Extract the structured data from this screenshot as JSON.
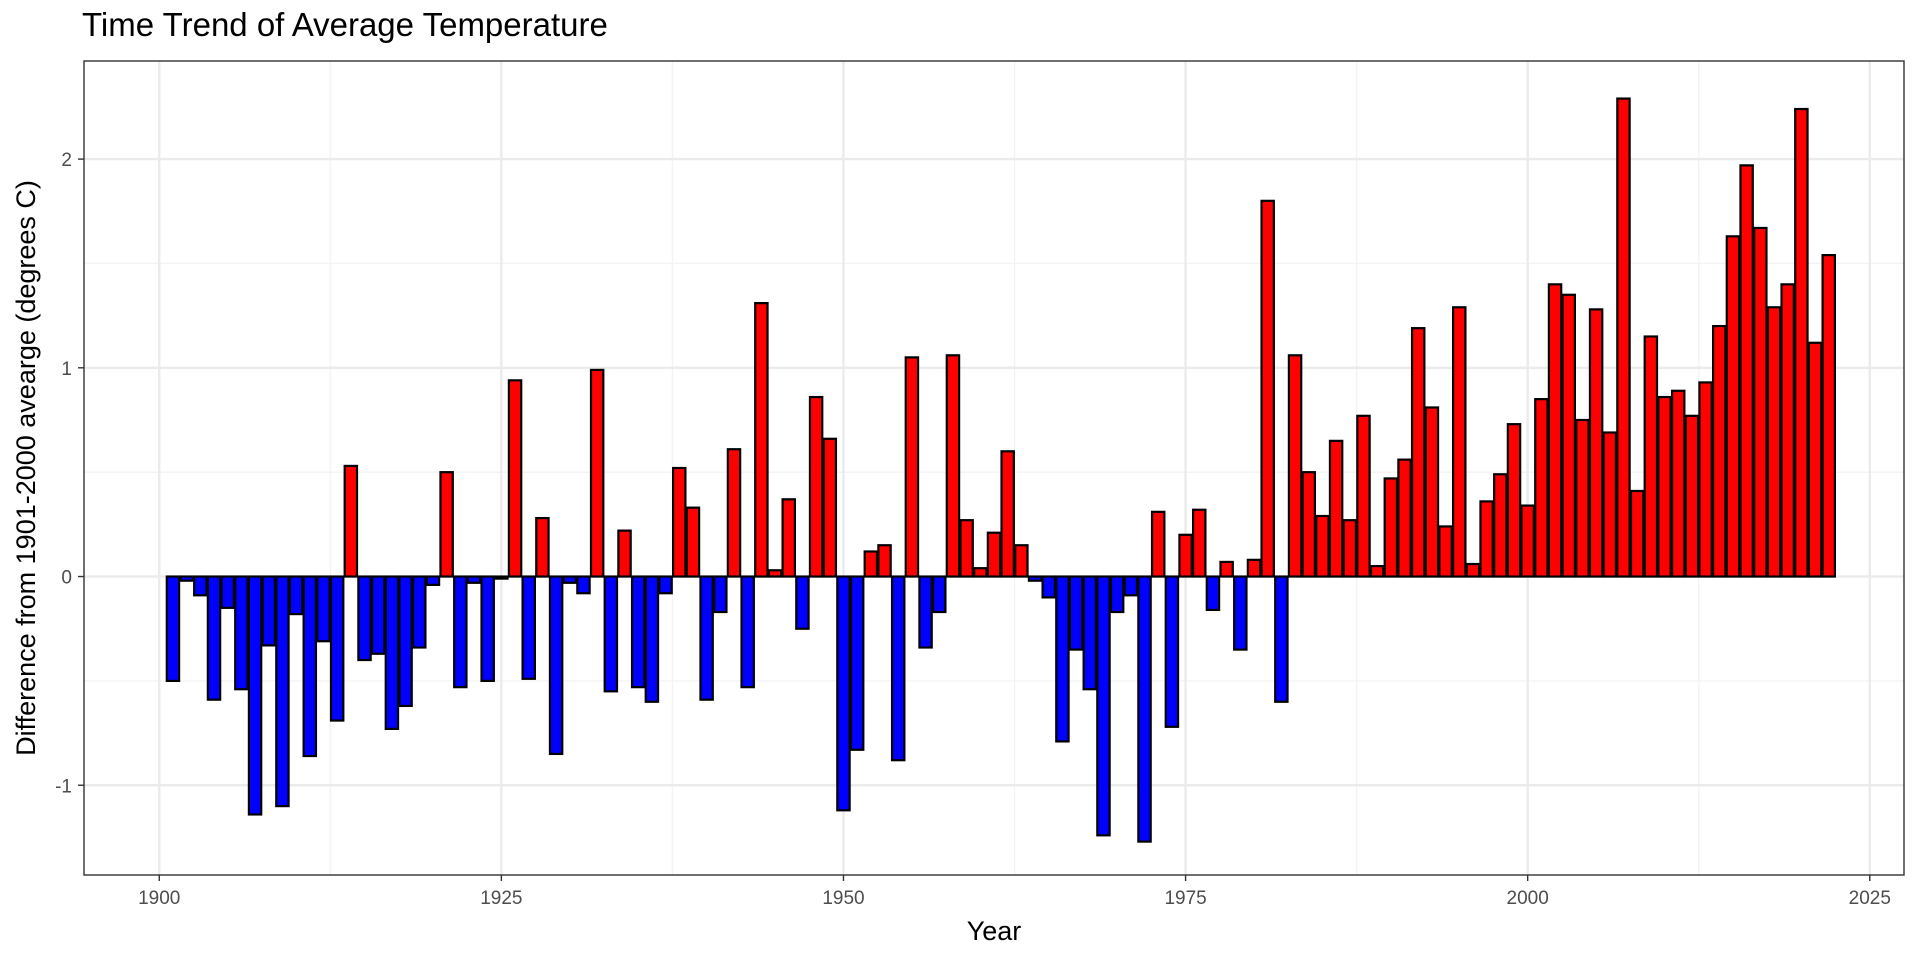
{
  "chart_data": {
    "type": "bar",
    "title": "Time Trend of Average Temperature",
    "xlabel": "Year",
    "ylabel": "Difference from 1901-2000 avearge (degrees C)",
    "xlim": [
      1894.5,
      2027.5
    ],
    "ylim": [
      -1.43,
      2.47
    ],
    "x_ticks": [
      1900,
      1925,
      1950,
      1975,
      2000,
      2025
    ],
    "y_ticks": [
      -1,
      0,
      1,
      2
    ],
    "y_tick_labels": [
      "-1",
      "0",
      "1",
      "2"
    ],
    "grid": true,
    "legend": "none",
    "colors": {
      "positive": "#ff0000",
      "negative": "#0000ff",
      "outline": "#000000",
      "grid_major": "#ebebeb",
      "grid_minor": "#f3f3f3",
      "panel_border": "#333333"
    },
    "x": [
      1901,
      1902,
      1903,
      1904,
      1905,
      1906,
      1907,
      1908,
      1909,
      1910,
      1911,
      1912,
      1913,
      1914,
      1915,
      1916,
      1917,
      1918,
      1919,
      1920,
      1921,
      1922,
      1923,
      1924,
      1925,
      1926,
      1927,
      1928,
      1929,
      1930,
      1931,
      1932,
      1933,
      1934,
      1935,
      1936,
      1937,
      1938,
      1939,
      1940,
      1941,
      1942,
      1943,
      1944,
      1945,
      1946,
      1947,
      1948,
      1949,
      1950,
      1951,
      1952,
      1953,
      1954,
      1955,
      1956,
      1957,
      1958,
      1959,
      1960,
      1961,
      1962,
      1963,
      1964,
      1965,
      1966,
      1967,
      1968,
      1969,
      1970,
      1971,
      1972,
      1973,
      1974,
      1975,
      1976,
      1977,
      1978,
      1979,
      1980,
      1981,
      1982,
      1983,
      1984,
      1985,
      1986,
      1987,
      1988,
      1989,
      1990,
      1991,
      1992,
      1993,
      1994,
      1995,
      1996,
      1997,
      1998,
      1999,
      2000,
      2001,
      2002,
      2003,
      2004,
      2005,
      2006,
      2007,
      2008,
      2009,
      2010,
      2011,
      2012,
      2013,
      2014,
      2015,
      2016,
      2017,
      2018,
      2019,
      2020,
      2021,
      2022
    ],
    "values": [
      -0.5,
      -0.02,
      -0.09,
      -0.59,
      -0.15,
      -0.54,
      -1.14,
      -0.33,
      -1.1,
      -0.18,
      -0.86,
      -0.31,
      -0.69,
      0.53,
      -0.4,
      -0.37,
      -0.73,
      -0.62,
      -0.34,
      -0.04,
      0.5,
      -0.53,
      -0.03,
      -0.5,
      -0.01,
      0.94,
      -0.49,
      0.28,
      -0.85,
      -0.03,
      -0.08,
      0.99,
      -0.55,
      0.22,
      -0.53,
      -0.6,
      -0.08,
      0.52,
      0.33,
      -0.59,
      -0.17,
      0.61,
      -0.53,
      1.31,
      0.03,
      0.37,
      -0.25,
      0.86,
      0.66,
      -1.12,
      -0.83,
      0.12,
      0.15,
      -0.88,
      1.05,
      -0.34,
      -0.17,
      1.06,
      0.27,
      0.04,
      0.21,
      0.6,
      0.15,
      -0.02,
      -0.1,
      -0.79,
      -0.35,
      -0.54,
      -1.24,
      -0.17,
      -0.09,
      -1.27,
      0.31,
      -0.72,
      0.2,
      0.32,
      -0.16,
      0.07,
      -0.35,
      0.08,
      1.8,
      -0.6,
      1.06,
      0.5,
      0.29,
      0.65,
      0.27,
      0.77,
      0.05,
      0.47,
      0.56,
      1.19,
      0.81,
      0.24,
      1.29,
      0.06,
      0.36,
      0.49,
      0.73,
      0.34,
      0.85,
      1.4,
      1.35,
      0.75,
      1.28,
      0.69,
      2.29,
      0.41,
      1.15,
      0.86,
      0.89,
      0.77,
      0.93,
      1.2,
      1.63,
      1.97,
      1.67,
      1.29,
      1.4,
      2.24,
      1.12,
      1.54
    ]
  }
}
